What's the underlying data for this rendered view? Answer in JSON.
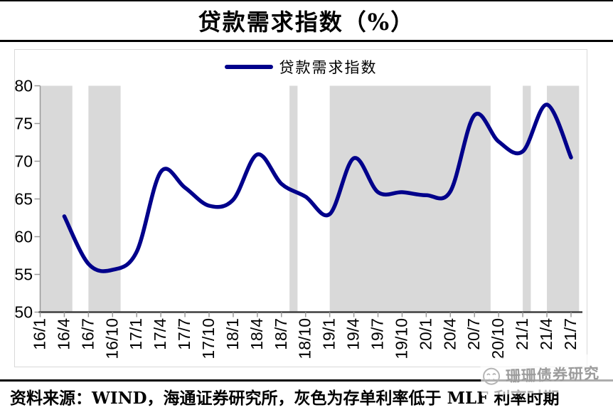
{
  "page": {
    "title": "贷款需求指数（%）"
  },
  "footer": {
    "text": "资料来源：WIND，海通证券研究所，灰色为存单利率低于 MLF 利率时期"
  },
  "watermark": {
    "label": "珊珊债券研究",
    "icon": "smiley-avatar-icon"
  },
  "colors": {
    "line": "#00008B",
    "band": "#D9D9D9",
    "y_axis": "#999999",
    "x_axis": "#3F3F3F",
    "tick": "#999999",
    "rule": "#000000",
    "watermark": "#9C9C9C"
  },
  "chart_data": {
    "type": "line",
    "title": "贷款需求指数（%）",
    "xlabel": "",
    "ylabel": "",
    "ylim": [
      50,
      80
    ],
    "y_ticks": [
      50,
      55,
      60,
      65,
      70,
      75,
      80
    ],
    "grid": false,
    "legend_position": "top-center",
    "x_tick_labels": [
      "16/1",
      "16/4",
      "16/7",
      "16/10",
      "17/1",
      "17/4",
      "17/7",
      "17/10",
      "18/1",
      "18/4",
      "18/7",
      "18/10",
      "19/1",
      "19/4",
      "19/7",
      "19/10",
      "20/1",
      "20/4",
      "20/7",
      "20/10",
      "21/1",
      "21/4",
      "21/7"
    ],
    "series": [
      {
        "name": "贷款需求指数",
        "color": "#00008B",
        "points": [
          {
            "x": "16/4",
            "y": 62.7
          },
          {
            "x": "16/7",
            "y": 56.4
          },
          {
            "x": "16/10",
            "y": 55.6
          },
          {
            "x": "17/1",
            "y": 58.0
          },
          {
            "x": "17/4",
            "y": 68.6
          },
          {
            "x": "17/7",
            "y": 66.5
          },
          {
            "x": "17/10",
            "y": 64.1
          },
          {
            "x": "18/1",
            "y": 64.9
          },
          {
            "x": "18/4",
            "y": 70.9
          },
          {
            "x": "18/7",
            "y": 67.0
          },
          {
            "x": "18/10",
            "y": 65.3
          },
          {
            "x": "19/1",
            "y": 63.0
          },
          {
            "x": "19/4",
            "y": 70.4
          },
          {
            "x": "19/7",
            "y": 65.9
          },
          {
            "x": "19/10",
            "y": 65.9
          },
          {
            "x": "20/1",
            "y": 65.5
          },
          {
            "x": "20/4",
            "y": 66.0
          },
          {
            "x": "20/7",
            "y": 76.1
          },
          {
            "x": "20/10",
            "y": 72.6
          },
          {
            "x": "21/1",
            "y": 71.3
          },
          {
            "x": "21/4",
            "y": 77.5
          },
          {
            "x": "21/7",
            "y": 70.5
          }
        ]
      }
    ],
    "shaded_bands": [
      {
        "from": "16/1",
        "to": "16/5"
      },
      {
        "from": "16/7",
        "to": "16/11"
      },
      {
        "from": "18/8",
        "to": "18/9"
      },
      {
        "from": "19/1",
        "to": "20/9"
      },
      {
        "from": "21/1",
        "to": "21/2"
      },
      {
        "from": "21/4",
        "to": "21/8"
      }
    ],
    "shaded_bands_meaning": "灰色为存单利率低于 MLF 利率时期"
  }
}
